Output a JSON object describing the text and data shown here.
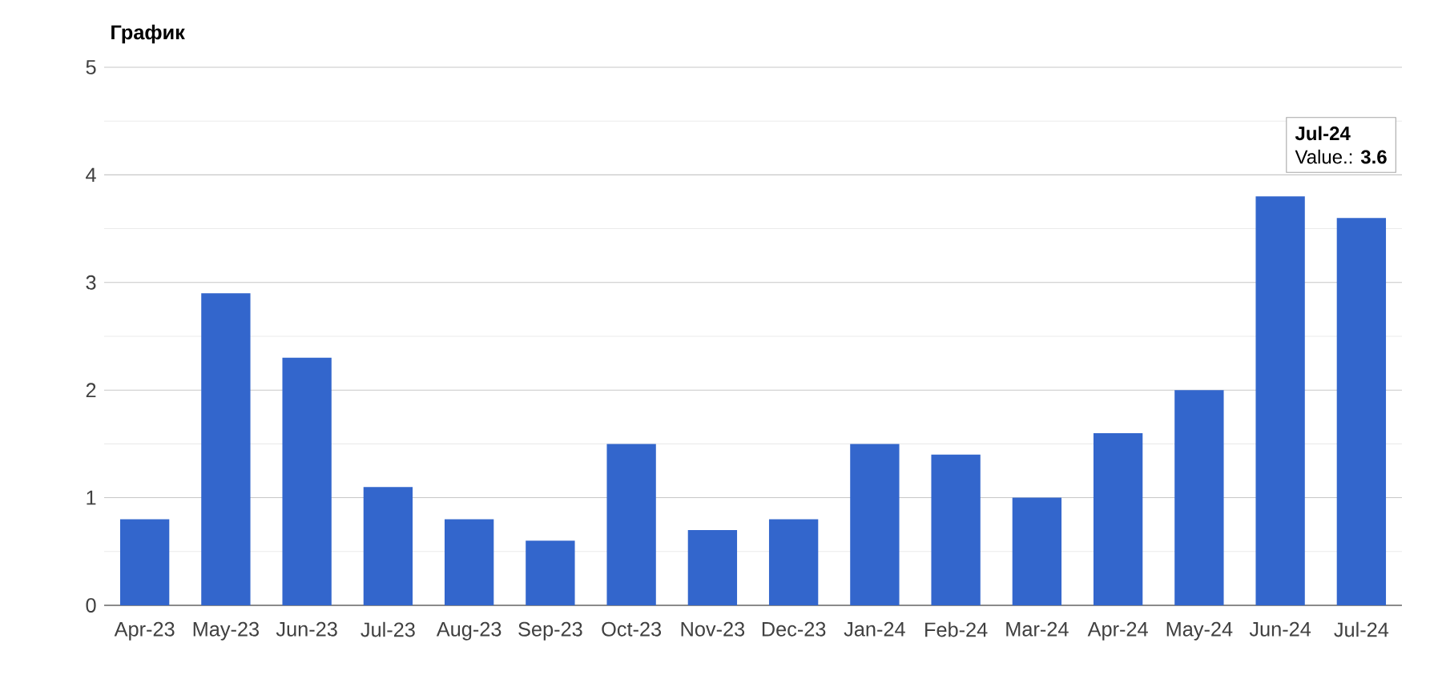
{
  "chart_data": {
    "type": "bar",
    "title": "График",
    "categories": [
      "Apr-23",
      "May-23",
      "Jun-23",
      "Jul-23",
      "Aug-23",
      "Sep-23",
      "Oct-23",
      "Nov-23",
      "Dec-23",
      "Jan-24",
      "Feb-24",
      "Mar-24",
      "Apr-24",
      "May-24",
      "Jun-24",
      "Jul-24"
    ],
    "values": [
      0.8,
      2.9,
      2.3,
      1.1,
      0.8,
      0.6,
      1.5,
      0.7,
      0.8,
      1.5,
      1.4,
      1.0,
      1.6,
      2.0,
      3.8,
      3.6
    ],
    "color": "#3366cc",
    "ylim": [
      0,
      5
    ],
    "yticks": [
      0,
      1,
      2,
      3,
      4,
      5
    ],
    "grid": true,
    "annotations": [
      "Jul-24",
      "Value.: **3.6**"
    ]
  }
}
